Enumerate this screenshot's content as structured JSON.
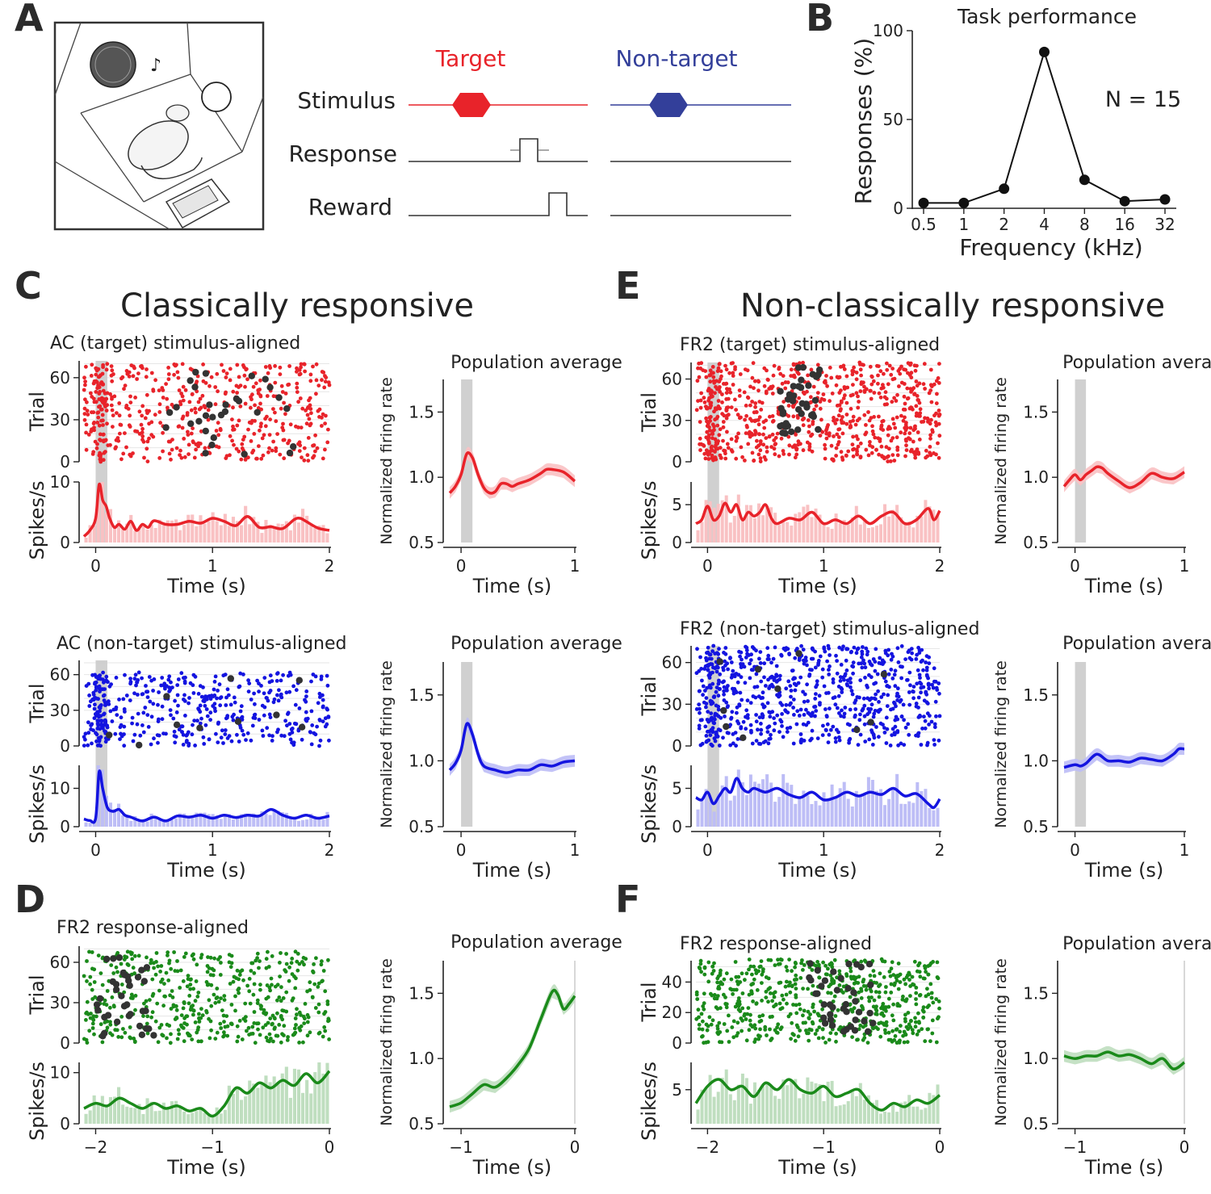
{
  "panel_letters": [
    "A",
    "B",
    "C",
    "D",
    "E",
    "F"
  ],
  "sections": {
    "C": "Classically responsive",
    "E": "Non-classically responsive"
  },
  "colors": {
    "target": "#e8232a",
    "nontarget": "#333f9a",
    "red": "#e8232a",
    "blue": "#1414e0",
    "green": "#1a8a1a",
    "dark": "#333333",
    "window": "#c8c8c8"
  },
  "panel_a": {
    "diagram_name": "rat-behavior-box-illustration",
    "labels": {
      "target": "Target",
      "nontarget": "Non-target",
      "stimulus": "Stimulus",
      "response": "Response",
      "reward": "Reward"
    }
  },
  "chart_data": [
    {
      "id": "B",
      "type": "line",
      "title": "Task performance",
      "xlabel": "Frequency (kHz)",
      "ylabel": "Responses (%)",
      "categories": [
        "0.5",
        "1",
        "2",
        "4",
        "8",
        "16",
        "32"
      ],
      "values": [
        3,
        3,
        11,
        88,
        16,
        4,
        5
      ],
      "ylim": [
        0,
        100
      ],
      "yticks": [
        "0",
        "50",
        "100"
      ],
      "annotation": "N = 15"
    },
    {
      "id": "C-target",
      "type": "scatter",
      "title": "AC (target) stimulus-aligned",
      "color": "red",
      "raster_ylabel": "Trial",
      "raster_yticks": [
        "0",
        "30",
        "60"
      ],
      "n_trials": 70,
      "psth_ylabel": "Spikes/s",
      "psth_yticks": [
        "0",
        "10"
      ],
      "psth_ylim": [
        0,
        10
      ],
      "xlabel": "Time (s)",
      "xticks": [
        "0",
        "1",
        "2"
      ],
      "xlim": [
        -0.1,
        2
      ],
      "psth_points": [
        [
          -0.1,
          1
        ],
        [
          -0.05,
          2
        ],
        [
          0,
          4
        ],
        [
          0.03,
          9.6
        ],
        [
          0.06,
          7
        ],
        [
          0.09,
          6
        ],
        [
          0.12,
          4
        ],
        [
          0.16,
          2.5
        ],
        [
          0.2,
          3
        ],
        [
          0.25,
          2.2
        ],
        [
          0.3,
          3.5
        ],
        [
          0.35,
          2
        ],
        [
          0.4,
          3
        ],
        [
          0.45,
          2.5
        ],
        [
          0.5,
          3.6
        ],
        [
          0.6,
          3
        ],
        [
          0.7,
          3
        ],
        [
          0.8,
          3.5
        ],
        [
          0.9,
          3.2
        ],
        [
          1,
          4
        ],
        [
          1.1,
          3.5
        ],
        [
          1.2,
          2.8
        ],
        [
          1.3,
          4.3
        ],
        [
          1.4,
          2.5
        ],
        [
          1.5,
          2.6
        ],
        [
          1.6,
          2.3
        ],
        [
          1.7,
          3.8
        ],
        [
          1.75,
          4
        ],
        [
          1.8,
          3.5
        ],
        [
          1.9,
          2.4
        ],
        [
          2,
          2
        ]
      ]
    },
    {
      "id": "C-target-pop",
      "type": "line",
      "title": "Population average",
      "color": "red",
      "ylabel": "Normalized firing rate",
      "yticks": [
        "0.5",
        "1.0",
        "1.5"
      ],
      "ylim": [
        0.5,
        1.75
      ],
      "xlabel": "Time (s)",
      "xticks": [
        "0",
        "1"
      ],
      "xlim": [
        -0.1,
        1
      ],
      "points": [
        [
          -0.1,
          0.88
        ],
        [
          -0.05,
          0.93
        ],
        [
          0,
          1.02
        ],
        [
          0.05,
          1.18
        ],
        [
          0.1,
          1.15
        ],
        [
          0.15,
          1.02
        ],
        [
          0.2,
          0.92
        ],
        [
          0.25,
          0.88
        ],
        [
          0.3,
          0.89
        ],
        [
          0.35,
          0.95
        ],
        [
          0.4,
          0.95
        ],
        [
          0.45,
          0.93
        ],
        [
          0.5,
          0.95
        ],
        [
          0.6,
          0.98
        ],
        [
          0.7,
          1.03
        ],
        [
          0.75,
          1.06
        ],
        [
          0.8,
          1.06
        ],
        [
          0.9,
          1.04
        ],
        [
          1,
          0.97
        ]
      ]
    },
    {
      "id": "C-nontarget",
      "type": "scatter",
      "title": "AC (non-target) stimulus-aligned",
      "color": "blue",
      "raster_ylabel": "Trial",
      "raster_yticks": [
        "0",
        "30",
        "60"
      ],
      "n_trials": 62,
      "psth_ylabel": "Spikes/s",
      "psth_yticks": [
        "0",
        "10"
      ],
      "psth_ylim": [
        0,
        16
      ],
      "xlabel": "Time (s)",
      "xticks": [
        "0",
        "1",
        "2"
      ],
      "xlim": [
        -0.1,
        2
      ],
      "psth_points": [
        [
          -0.1,
          2
        ],
        [
          -0.05,
          1.6
        ],
        [
          0,
          2.2
        ],
        [
          0.03,
          14.3
        ],
        [
          0.06,
          10
        ],
        [
          0.1,
          5
        ],
        [
          0.15,
          4
        ],
        [
          0.2,
          4.5
        ],
        [
          0.25,
          3
        ],
        [
          0.3,
          2.5
        ],
        [
          0.4,
          1.5
        ],
        [
          0.5,
          2.5
        ],
        [
          0.6,
          1.5
        ],
        [
          0.7,
          2.8
        ],
        [
          0.8,
          2.5
        ],
        [
          0.9,
          3
        ],
        [
          1,
          2.2
        ],
        [
          1.1,
          3
        ],
        [
          1.2,
          2.4
        ],
        [
          1.3,
          3
        ],
        [
          1.4,
          2.8
        ],
        [
          1.5,
          4.5
        ],
        [
          1.6,
          3
        ],
        [
          1.7,
          2.2
        ],
        [
          1.8,
          3
        ],
        [
          1.9,
          2.2
        ],
        [
          2,
          2.8
        ]
      ]
    },
    {
      "id": "C-nontarget-pop",
      "type": "line",
      "title": "Population average",
      "color": "blue",
      "ylabel": "Normalized firing rate",
      "yticks": [
        "0.5",
        "1.0",
        "1.5"
      ],
      "ylim": [
        0.5,
        1.75
      ],
      "xlabel": "Time (s)",
      "xticks": [
        "0",
        "1"
      ],
      "xlim": [
        -0.1,
        1
      ],
      "points": [
        [
          -0.1,
          0.93
        ],
        [
          -0.05,
          0.98
        ],
        [
          0,
          1.08
        ],
        [
          0.05,
          1.28
        ],
        [
          0.1,
          1.2
        ],
        [
          0.15,
          1.05
        ],
        [
          0.2,
          0.96
        ],
        [
          0.3,
          0.93
        ],
        [
          0.4,
          0.91
        ],
        [
          0.5,
          0.93
        ],
        [
          0.6,
          0.93
        ],
        [
          0.7,
          0.97
        ],
        [
          0.8,
          0.96
        ],
        [
          0.9,
          0.99
        ],
        [
          1,
          1.0
        ]
      ]
    },
    {
      "id": "D",
      "type": "scatter",
      "title": "FR2 response-aligned",
      "color": "green",
      "raster_ylabel": "Trial",
      "raster_yticks": [
        "0",
        "30",
        "60"
      ],
      "n_trials": 68,
      "psth_ylabel": "Spikes/s",
      "psth_yticks": [
        "0",
        "10"
      ],
      "psth_ylim": [
        0,
        12
      ],
      "xlabel": "Time (s)",
      "xticks": [
        "−2",
        "−1",
        "0"
      ],
      "xlim": [
        -2.1,
        0
      ],
      "psth_points": [
        [
          -2.1,
          3
        ],
        [
          -2,
          4
        ],
        [
          -1.9,
          3.5
        ],
        [
          -1.8,
          5
        ],
        [
          -1.7,
          4
        ],
        [
          -1.6,
          3
        ],
        [
          -1.5,
          4
        ],
        [
          -1.4,
          3
        ],
        [
          -1.3,
          3.5
        ],
        [
          -1.2,
          2.5
        ],
        [
          -1.1,
          3
        ],
        [
          -1.0,
          1.5
        ],
        [
          -0.9,
          3.5
        ],
        [
          -0.8,
          7
        ],
        [
          -0.7,
          6
        ],
        [
          -0.6,
          8
        ],
        [
          -0.5,
          7
        ],
        [
          -0.4,
          8.5
        ],
        [
          -0.3,
          7.5
        ],
        [
          -0.2,
          9.8
        ],
        [
          -0.1,
          8
        ],
        [
          0,
          10.3
        ]
      ]
    },
    {
      "id": "D-pop",
      "type": "line",
      "title": "Population average",
      "color": "green",
      "ylabel": "Normalized firing rate",
      "yticks": [
        "0.5",
        "1.0",
        "1.5"
      ],
      "ylim": [
        0.5,
        1.75
      ],
      "xlabel": "Time (s)",
      "xticks": [
        "−1",
        "0"
      ],
      "xlim": [
        -1.1,
        0
      ],
      "points": [
        [
          -1.1,
          0.63
        ],
        [
          -1.0,
          0.66
        ],
        [
          -0.9,
          0.73
        ],
        [
          -0.8,
          0.8
        ],
        [
          -0.7,
          0.78
        ],
        [
          -0.6,
          0.85
        ],
        [
          -0.5,
          0.95
        ],
        [
          -0.4,
          1.08
        ],
        [
          -0.3,
          1.3
        ],
        [
          -0.2,
          1.51
        ],
        [
          -0.15,
          1.49
        ],
        [
          -0.1,
          1.38
        ],
        [
          -0.05,
          1.42
        ],
        [
          0,
          1.48
        ]
      ]
    },
    {
      "id": "E-target",
      "type": "scatter",
      "title": "FR2 (target) stimulus-aligned",
      "color": "red",
      "raster_ylabel": "Trial",
      "raster_yticks": [
        "0",
        "30",
        "60"
      ],
      "n_trials": 72,
      "psth_ylabel": "Spikes/s",
      "psth_yticks": [
        "0",
        "5"
      ],
      "psth_ylim": [
        0,
        8
      ],
      "xlabel": "Time (s)",
      "xticks": [
        "0",
        "1",
        "2"
      ],
      "xlim": [
        -0.1,
        2
      ],
      "psth_points": [
        [
          -0.1,
          2.5
        ],
        [
          -0.05,
          3
        ],
        [
          0,
          4.8
        ],
        [
          0.05,
          3
        ],
        [
          0.1,
          3.5
        ],
        [
          0.15,
          5.2
        ],
        [
          0.2,
          4
        ],
        [
          0.25,
          5
        ],
        [
          0.3,
          3
        ],
        [
          0.35,
          4
        ],
        [
          0.4,
          3.5
        ],
        [
          0.45,
          4
        ],
        [
          0.5,
          5
        ],
        [
          0.55,
          3.2
        ],
        [
          0.6,
          2.5
        ],
        [
          0.7,
          3.2
        ],
        [
          0.8,
          3
        ],
        [
          0.9,
          4
        ],
        [
          1.0,
          2.5
        ],
        [
          1.1,
          3
        ],
        [
          1.2,
          2.5
        ],
        [
          1.3,
          3.5
        ],
        [
          1.4,
          2.5
        ],
        [
          1.5,
          3.5
        ],
        [
          1.6,
          4
        ],
        [
          1.7,
          2.5
        ],
        [
          1.8,
          3
        ],
        [
          1.9,
          4.5
        ],
        [
          1.95,
          3
        ],
        [
          2,
          4.2
        ]
      ]
    },
    {
      "id": "E-target-pop",
      "type": "line",
      "title": "Population average",
      "color": "red",
      "ylabel": "Normalized firing rate",
      "yticks": [
        "0.5",
        "1.0",
        "1.5"
      ],
      "ylim": [
        0.5,
        1.75
      ],
      "xlabel": "Time (s)",
      "xticks": [
        "0",
        "1"
      ],
      "xlim": [
        -0.1,
        1
      ],
      "points": [
        [
          -0.1,
          0.93
        ],
        [
          -0.05,
          0.98
        ],
        [
          0,
          1.02
        ],
        [
          0.05,
          0.98
        ],
        [
          0.1,
          1.02
        ],
        [
          0.15,
          1.05
        ],
        [
          0.2,
          1.08
        ],
        [
          0.25,
          1.07
        ],
        [
          0.3,
          1.03
        ],
        [
          0.4,
          0.97
        ],
        [
          0.5,
          0.92
        ],
        [
          0.6,
          0.96
        ],
        [
          0.7,
          1.03
        ],
        [
          0.8,
          1.0
        ],
        [
          0.9,
          0.99
        ],
        [
          1,
          1.04
        ]
      ]
    },
    {
      "id": "E-nontarget",
      "type": "scatter",
      "title": "FR2 (non-target) stimulus-aligned",
      "color": "blue",
      "raster_ylabel": "Trial",
      "raster_yticks": [
        "0",
        "30",
        "60"
      ],
      "n_trials": 72,
      "psth_ylabel": "Spikes/s",
      "psth_yticks": [
        "0",
        "5"
      ],
      "psth_ylim": [
        0,
        8
      ],
      "xlabel": "Time (s)",
      "xticks": [
        "0",
        "1",
        "2"
      ],
      "xlim": [
        -0.1,
        2
      ],
      "psth_points": [
        [
          -0.1,
          3.8
        ],
        [
          -0.05,
          3.5
        ],
        [
          0,
          4.5
        ],
        [
          0.05,
          3
        ],
        [
          0.1,
          4
        ],
        [
          0.15,
          5
        ],
        [
          0.2,
          4.5
        ],
        [
          0.25,
          6.3
        ],
        [
          0.3,
          5
        ],
        [
          0.35,
          4.5
        ],
        [
          0.4,
          5
        ],
        [
          0.5,
          4.5
        ],
        [
          0.6,
          5
        ],
        [
          0.7,
          4.2
        ],
        [
          0.8,
          3.8
        ],
        [
          0.9,
          4.5
        ],
        [
          1.0,
          3.5
        ],
        [
          1.1,
          3.8
        ],
        [
          1.2,
          4.5
        ],
        [
          1.3,
          4
        ],
        [
          1.4,
          4.5
        ],
        [
          1.5,
          4.2
        ],
        [
          1.6,
          5
        ],
        [
          1.7,
          4
        ],
        [
          1.8,
          4.3
        ],
        [
          1.9,
          3
        ],
        [
          1.95,
          2.5
        ],
        [
          2,
          3.6
        ]
      ]
    },
    {
      "id": "E-nontarget-pop",
      "type": "line",
      "title": "Population average",
      "color": "blue",
      "ylabel": "Normalized firing rate",
      "yticks": [
        "0.5",
        "1.0",
        "1.5"
      ],
      "ylim": [
        0.5,
        1.75
      ],
      "xlabel": "Time (s)",
      "xticks": [
        "0",
        "1"
      ],
      "xlim": [
        -0.1,
        1
      ],
      "points": [
        [
          -0.1,
          0.95
        ],
        [
          0,
          0.97
        ],
        [
          0.05,
          0.96
        ],
        [
          0.1,
          0.98
        ],
        [
          0.2,
          1.05
        ],
        [
          0.3,
          1.0
        ],
        [
          0.4,
          1.0
        ],
        [
          0.5,
          0.99
        ],
        [
          0.6,
          1.02
        ],
        [
          0.7,
          1.01
        ],
        [
          0.8,
          1.0
        ],
        [
          0.9,
          1.05
        ],
        [
          0.95,
          1.09
        ],
        [
          1,
          1.09
        ]
      ]
    },
    {
      "id": "F",
      "type": "scatter",
      "title": "FR2 response-aligned",
      "color": "green",
      "raster_ylabel": "Trial",
      "raster_yticks": [
        "0",
        "20",
        "40"
      ],
      "n_trials": 55,
      "psth_ylabel": "Spikes/s",
      "psth_yticks": [
        "5"
      ],
      "psth_ylim": [
        0,
        9
      ],
      "xlabel": "Time (s)",
      "xticks": [
        "−2",
        "−1",
        "0"
      ],
      "xlim": [
        -2.1,
        0
      ],
      "psth_points": [
        [
          -2.1,
          3
        ],
        [
          -2.0,
          5.5
        ],
        [
          -1.9,
          6.5
        ],
        [
          -1.8,
          5
        ],
        [
          -1.7,
          5.5
        ],
        [
          -1.6,
          4
        ],
        [
          -1.5,
          6
        ],
        [
          -1.4,
          5
        ],
        [
          -1.3,
          6.5
        ],
        [
          -1.2,
          5
        ],
        [
          -1.1,
          4.5
        ],
        [
          -1.0,
          5.5
        ],
        [
          -0.9,
          4
        ],
        [
          -0.8,
          4.5
        ],
        [
          -0.7,
          5
        ],
        [
          -0.6,
          3
        ],
        [
          -0.5,
          2
        ],
        [
          -0.4,
          3
        ],
        [
          -0.3,
          2.5
        ],
        [
          -0.2,
          3.5
        ],
        [
          -0.1,
          3
        ],
        [
          0,
          4.2
        ]
      ]
    },
    {
      "id": "F-pop",
      "type": "line",
      "title": "Population average",
      "color": "green",
      "ylabel": "Normalized firing rate",
      "yticks": [
        "0.5",
        "1.0",
        "1.5"
      ],
      "ylim": [
        0.5,
        1.75
      ],
      "xlabel": "Time (s)",
      "xticks": [
        "−1",
        "0"
      ],
      "xlim": [
        -1.1,
        0
      ],
      "points": [
        [
          -1.1,
          1.02
        ],
        [
          -1.0,
          1.0
        ],
        [
          -0.9,
          1.02
        ],
        [
          -0.8,
          1.02
        ],
        [
          -0.7,
          1.05
        ],
        [
          -0.6,
          1.02
        ],
        [
          -0.5,
          1.03
        ],
        [
          -0.4,
          1.0
        ],
        [
          -0.3,
          0.96
        ],
        [
          -0.2,
          1.0
        ],
        [
          -0.1,
          0.92
        ],
        [
          0,
          0.97
        ]
      ]
    }
  ]
}
